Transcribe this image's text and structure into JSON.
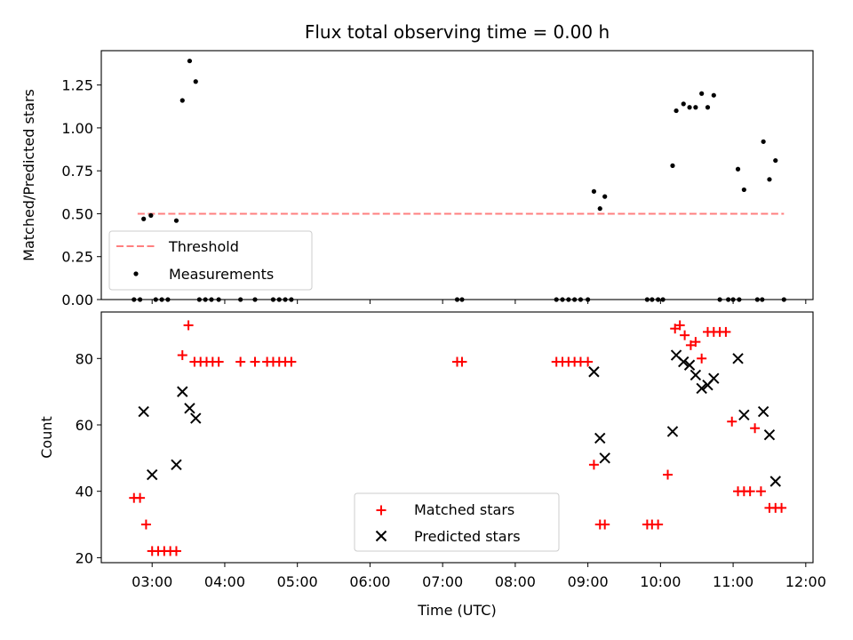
{
  "title": "Flux total observing time = 0.00 h",
  "chart_data": [
    {
      "type": "scatter",
      "panel": "top",
      "title": "Flux total observing time = 0.00 h",
      "xlabel": "",
      "ylabel": "Matched/Predicted stars",
      "xlim": [
        "02:18",
        "12:06"
      ],
      "ylim": [
        0,
        1.45
      ],
      "yticks": [
        0.0,
        0.25,
        0.5,
        0.75,
        1.0,
        1.25
      ],
      "ytick_labels": [
        "0.00",
        "0.25",
        "0.50",
        "0.75",
        "1.00",
        "1.25"
      ],
      "legend_position": "lower-left",
      "series": [
        {
          "name": "Threshold",
          "kind": "line",
          "style": "dashed",
          "color": "#ff7f7f",
          "x": [
            "02:48",
            "11:42"
          ],
          "y": [
            0.5,
            0.5
          ]
        },
        {
          "name": "Measurements",
          "kind": "points",
          "color": "#000000",
          "x": [
            "02:53",
            "02:59",
            "03:20",
            "03:25",
            "03:31",
            "03:36",
            "09:05",
            "09:10",
            "09:14",
            "10:10",
            "10:13",
            "10:19",
            "10:24",
            "10:29",
            "10:34",
            "10:39",
            "10:44",
            "10:49",
            "11:04",
            "11:09",
            "11:25",
            "11:30",
            "11:35",
            "02:45",
            "02:50",
            "03:03",
            "03:08",
            "03:13",
            "03:39",
            "03:44",
            "03:49",
            "03:55",
            "04:13",
            "04:25",
            "04:40",
            "04:45",
            "04:50",
            "04:55",
            "07:12",
            "07:16",
            "08:34",
            "08:39",
            "08:44",
            "08:49",
            "08:54",
            "09:00",
            "09:49",
            "09:53",
            "09:58",
            "10:02",
            "10:56",
            "11:00",
            "11:05",
            "11:20",
            "11:24",
            "11:42"
          ],
          "y": [
            0.47,
            0.49,
            0.46,
            1.16,
            1.39,
            1.27,
            0.63,
            0.53,
            0.6,
            0.78,
            1.1,
            1.14,
            1.12,
            1.12,
            1.2,
            1.12,
            1.19,
            0.0,
            0.76,
            0.64,
            0.92,
            0.7,
            0.81,
            0,
            0,
            0,
            0,
            0,
            0,
            0,
            0,
            0,
            0,
            0,
            0,
            0,
            0,
            0,
            0,
            0,
            0,
            0,
            0,
            0,
            0,
            0,
            0,
            0,
            0,
            0,
            0,
            0,
            0,
            0,
            0,
            0
          ]
        }
      ]
    },
    {
      "type": "scatter",
      "panel": "bottom",
      "xlabel": "Time (UTC)",
      "ylabel": "Count",
      "xlim": [
        "02:18",
        "12:06"
      ],
      "ylim": [
        18.5,
        94
      ],
      "yticks": [
        20,
        40,
        60,
        80
      ],
      "xticks": [
        "03:00",
        "04:00",
        "05:00",
        "06:00",
        "07:00",
        "08:00",
        "09:00",
        "10:00",
        "11:00",
        "12:00"
      ],
      "legend_position": "lower-center",
      "series": [
        {
          "name": "Matched stars",
          "marker": "plus",
          "color": "#ff0000",
          "x": [
            "02:45",
            "02:50",
            "02:55",
            "03:00",
            "03:05",
            "03:10",
            "03:15",
            "03:20",
            "03:25",
            "03:30",
            "03:35",
            "03:40",
            "03:45",
            "03:50",
            "03:55",
            "04:13",
            "04:25",
            "04:35",
            "04:40",
            "04:45",
            "04:50",
            "04:55",
            "07:12",
            "07:16",
            "08:34",
            "08:39",
            "08:44",
            "08:49",
            "08:54",
            "09:00",
            "09:05",
            "09:10",
            "09:14",
            "09:49",
            "09:53",
            "09:58",
            "10:06",
            "10:12",
            "10:16",
            "10:20",
            "10:25",
            "10:29",
            "10:34",
            "10:39",
            "10:44",
            "10:49",
            "10:54",
            "10:59",
            "11:04",
            "11:09",
            "11:14",
            "11:18",
            "11:23",
            "11:30",
            "11:35",
            "11:40"
          ],
          "y": [
            38,
            38,
            30,
            22,
            22,
            22,
            22,
            22,
            81,
            90,
            79,
            79,
            79,
            79,
            79,
            79,
            79,
            79,
            79,
            79,
            79,
            79,
            79,
            79,
            79,
            79,
            79,
            79,
            79,
            79,
            48,
            30,
            30,
            30,
            30,
            30,
            45,
            89,
            90,
            87,
            84,
            85,
            80,
            88,
            88,
            88,
            88,
            61,
            40,
            40,
            40,
            59,
            40,
            35,
            35,
            35
          ]
        },
        {
          "name": "Predicted stars",
          "marker": "x",
          "color": "#000000",
          "x": [
            "02:53",
            "03:00",
            "03:20",
            "03:25",
            "03:31",
            "03:36",
            "09:05",
            "09:10",
            "09:14",
            "10:10",
            "10:13",
            "10:19",
            "10:24",
            "10:29",
            "10:34",
            "10:39",
            "10:44",
            "11:04",
            "11:09",
            "11:25",
            "11:30",
            "11:35"
          ],
          "y": [
            64,
            45,
            48,
            70,
            65,
            62,
            76,
            56,
            50,
            58,
            81,
            79,
            78,
            75,
            71,
            72,
            74,
            80,
            63,
            64,
            57,
            43
          ]
        }
      ]
    }
  ]
}
